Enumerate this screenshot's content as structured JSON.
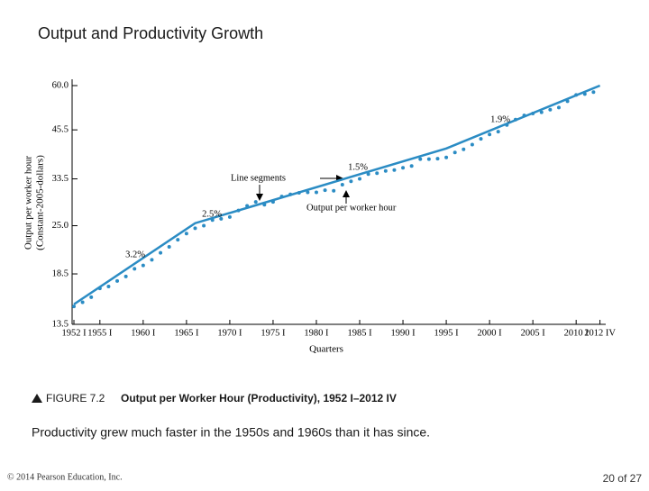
{
  "slide_title": "Output and Productivity Growth",
  "chart_data": {
    "type": "line",
    "xlabel": "Quarters",
    "ylabel": [
      "Output per worker hour",
      "(Constant-2005-dollars)"
    ],
    "xlim": [
      1952,
      2013
    ],
    "xticks": [
      {
        "value": 1952,
        "label": "1952 I"
      },
      {
        "value": 1955,
        "label": "1955 I"
      },
      {
        "value": 1960,
        "label": "1960 I"
      },
      {
        "value": 1965,
        "label": "1965 I"
      },
      {
        "value": 1970,
        "label": "1970 I"
      },
      {
        "value": 1975,
        "label": "1975 I"
      },
      {
        "value": 1980,
        "label": "1980 I"
      },
      {
        "value": 1985,
        "label": "1985 I"
      },
      {
        "value": 1990,
        "label": "1990 I"
      },
      {
        "value": 1995,
        "label": "1995 I"
      },
      {
        "value": 2000,
        "label": "2000 I"
      },
      {
        "value": 2005,
        "label": "2005 I"
      },
      {
        "value": 2010,
        "label": "2010 I"
      },
      {
        "value": 2012.75,
        "label": "2012 IV"
      }
    ],
    "ylim": [
      13.5,
      60.0
    ],
    "yticks": [
      {
        "value": 13.5,
        "label": "13.5"
      },
      {
        "value": 18.5,
        "label": "18.5"
      },
      {
        "value": 25.0,
        "label": "25.0"
      },
      {
        "value": 33.5,
        "label": "33.5"
      },
      {
        "value": 45.5,
        "label": "45.5"
      },
      {
        "value": 60.0,
        "label": "60.0"
      }
    ],
    "log_scale_y": true,
    "series": [
      {
        "name": "Output per worker hour",
        "color": "#2b8cc4",
        "style": "dotted",
        "x": [
          1952,
          1953,
          1954,
          1955,
          1956,
          1957,
          1958,
          1959,
          1960,
          1961,
          1962,
          1963,
          1964,
          1965,
          1966,
          1967,
          1968,
          1969,
          1970,
          1971,
          1972,
          1973,
          1974,
          1975,
          1976,
          1977,
          1978,
          1979,
          1980,
          1981,
          1982,
          1983,
          1984,
          1985,
          1986,
          1987,
          1988,
          1989,
          1990,
          1991,
          1992,
          1993,
          1994,
          1995,
          1996,
          1997,
          1998,
          1999,
          2000,
          2001,
          2002,
          2003,
          2004,
          2005,
          2006,
          2007,
          2008,
          2009,
          2010,
          2011,
          2012
        ],
        "values": [
          15.1,
          15.5,
          16.0,
          16.9,
          17.1,
          17.7,
          18.2,
          19.1,
          19.5,
          20.2,
          21.1,
          21.9,
          22.9,
          23.8,
          24.6,
          25.0,
          25.9,
          26.1,
          26.4,
          27.5,
          28.3,
          29.0,
          28.5,
          29.0,
          30.0,
          30.4,
          30.7,
          30.8,
          30.8,
          31.2,
          31.1,
          32.3,
          33.0,
          33.5,
          34.5,
          34.7,
          35.2,
          35.4,
          35.9,
          36.3,
          37.9,
          37.9,
          38.0,
          38.3,
          39.5,
          40.3,
          41.5,
          43.0,
          44.2,
          45.0,
          46.9,
          48.5,
          49.8,
          50.4,
          50.8,
          51.6,
          52.3,
          54.4,
          56.6,
          56.9,
          57.6
        ]
      },
      {
        "name": "Line segments",
        "color": "#2b8cc4",
        "style": "solid",
        "x": [
          1952,
          1966,
          1973,
          1995,
          2012.75
        ],
        "values": [
          15.3,
          25.4,
          28.4,
          40.5,
          60.0
        ]
      }
    ],
    "annotations": [
      "3.2%",
      "2.5%",
      "1.5%",
      "1.9%"
    ]
  },
  "figure_caption": {
    "label": "FIGURE 7.2",
    "text": "Output per Worker Hour (Productivity), 1952 I–2012 IV"
  },
  "note": "Productivity grew much faster in the 1950s and 1960s than it has since.",
  "footer": {
    "copyright": "© 2014 Pearson Education, Inc.",
    "page": "20 of 27"
  }
}
